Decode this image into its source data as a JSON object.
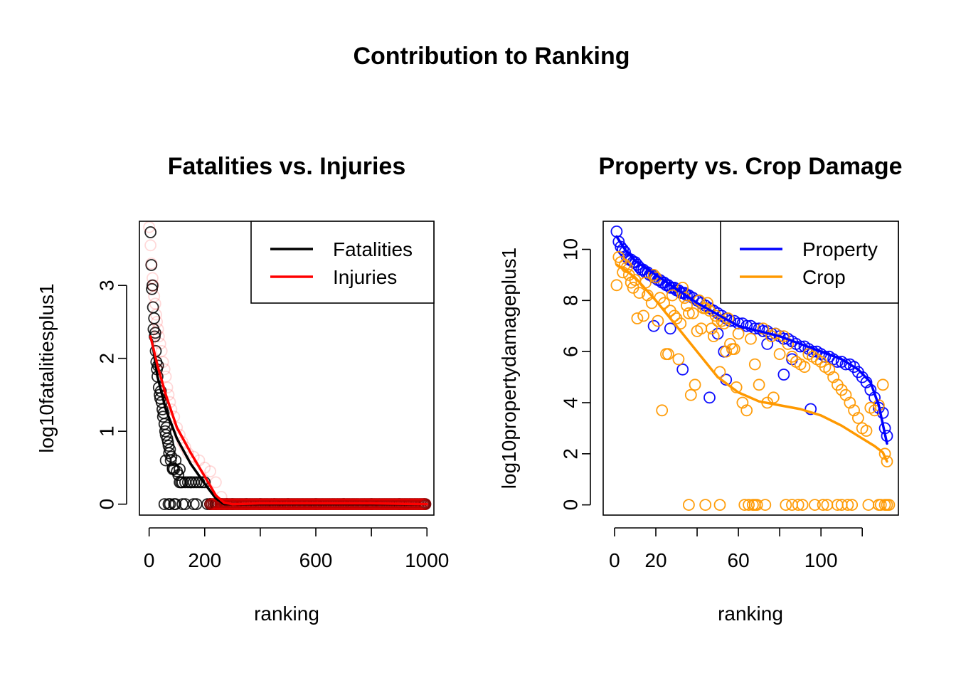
{
  "figure": {
    "title": "Contribution to Ranking"
  },
  "chart_data": [
    {
      "type": "scatter",
      "title": "Fatalities vs. Injuries",
      "xlabel": "ranking",
      "ylabel": "log10fatalitiesplus1",
      "xlim": [
        -35,
        1025
      ],
      "ylim": [
        -0.15,
        3.88
      ],
      "xticks": [
        0,
        200,
        400,
        600,
        800,
        1000
      ],
      "xtick_labels": [
        "0",
        "200",
        "",
        "600",
        "",
        "1000"
      ],
      "yticks": [
        0,
        1,
        2,
        3
      ],
      "ytick_labels": [
        "0",
        "1",
        "2",
        "3"
      ],
      "grid": false,
      "legend": {
        "position": "top-right",
        "entries": [
          "Fatalities",
          "Injuries"
        ]
      },
      "series": [
        {
          "name": "Fatalities",
          "color": "#000000",
          "points_x": [
            5,
            8,
            10,
            12,
            14,
            16,
            18,
            20,
            22,
            24,
            26,
            28,
            30,
            32,
            35,
            38,
            40,
            42,
            45,
            48,
            50,
            52,
            55,
            58,
            60,
            62,
            65,
            68,
            70,
            72,
            75,
            78,
            80,
            85,
            90,
            95,
            100,
            105,
            110,
            115,
            120,
            130,
            140,
            150,
            160,
            170,
            180,
            190,
            200,
            210,
            220,
            240,
            260,
            280,
            300,
            350,
            400,
            450,
            500,
            600,
            700,
            800,
            900,
            990,
            55,
            70,
            90,
            130,
            170,
            220,
            60,
            85,
            110,
            150,
            75,
            95,
            120,
            160
          ],
          "points_y": [
            3.73,
            3.28,
            2.95,
            3.0,
            2.7,
            2.4,
            2.55,
            2.3,
            2.35,
            2.1,
            1.95,
            1.85,
            1.75,
            1.9,
            1.6,
            1.5,
            1.45,
            1.55,
            1.4,
            1.3,
            1.2,
            1.25,
            1.1,
            1.0,
            0.95,
            1.05,
            0.9,
            0.85,
            0.8,
            0.7,
            0.75,
            0.6,
            0.65,
            0.5,
            0.48,
            0.6,
            0.45,
            0.4,
            0.48,
            0.3,
            0.3,
            0.3,
            0.3,
            0.3,
            0.3,
            0.3,
            0.3,
            0.3,
            0.3,
            0.0,
            0.0,
            0.0,
            0.0,
            0.0,
            0.0,
            0.0,
            0.0,
            0.0,
            0.0,
            0.0,
            0.0,
            0.0,
            0.0,
            0.0,
            0.0,
            0.0,
            0.0,
            0.0,
            0.0,
            0.0,
            0.6,
            0.48,
            0.3,
            0.3,
            0.0,
            0.0,
            0.0,
            0.0
          ],
          "fit_x": [
            10,
            30,
            60,
            100,
            150,
            200,
            240,
            270,
            300,
            400,
            600,
            800,
            1000
          ],
          "fit_y": [
            2.25,
            1.75,
            1.3,
            0.9,
            0.55,
            0.28,
            0.08,
            0.0,
            0.0,
            0.0,
            0.0,
            0.0,
            0.0
          ]
        },
        {
          "name": "Injuries",
          "color": "#ff0000",
          "points_x": [
            0,
            5,
            8,
            12,
            15,
            18,
            22,
            25,
            28,
            32,
            35,
            40,
            45,
            50,
            55,
            60,
            65,
            70,
            75,
            80,
            90,
            100,
            110,
            120,
            130,
            140,
            160,
            180,
            200,
            220,
            240,
            260,
            300,
            400,
            500,
            600,
            700,
            800,
            900,
            990
          ],
          "points_y": [
            3.8,
            3.55,
            3.3,
            3.1,
            3.0,
            2.85,
            2.75,
            2.6,
            2.5,
            2.4,
            2.3,
            2.2,
            2.1,
            1.95,
            1.85,
            1.75,
            1.6,
            1.5,
            1.4,
            1.3,
            1.2,
            1.05,
            0.95,
            0.85,
            0.78,
            0.7,
            0.65,
            0.6,
            0.5,
            0.45,
            0.3,
            0.1,
            0.0,
            0.0,
            0.0,
            0.0,
            0.0,
            0.0,
            0.0,
            0.0
          ],
          "fit_x": [
            5,
            30,
            60,
            100,
            150,
            200,
            240,
            270,
            300,
            400,
            600,
            800,
            1000
          ],
          "fit_y": [
            2.3,
            1.9,
            1.5,
            1.05,
            0.7,
            0.38,
            0.12,
            0.02,
            0.0,
            0.01,
            0.01,
            0.01,
            0.0
          ]
        }
      ]
    },
    {
      "type": "scatter",
      "title": "Property vs. Crop Damage",
      "xlabel": "ranking",
      "ylabel": "log10propertydamageplus1",
      "xlim": [
        -5.5,
        137.5
      ],
      "ylim": [
        -0.4,
        11.1
      ],
      "xticks": [
        0,
        20,
        40,
        60,
        80,
        100,
        120
      ],
      "xtick_labels": [
        "0",
        "20",
        "",
        "60",
        "",
        "100",
        ""
      ],
      "yticks": [
        0,
        2,
        4,
        6,
        8,
        10
      ],
      "ytick_labels": [
        "0",
        "2",
        "4",
        "6",
        "8",
        "10"
      ],
      "grid": false,
      "legend": {
        "position": "top-right",
        "entries": [
          "Property",
          "Crop"
        ]
      },
      "series": [
        {
          "name": "Property",
          "color": "#0000ff",
          "points_x": [
            1,
            2,
            3,
            4,
            5,
            6,
            7,
            8,
            9,
            10,
            11,
            12,
            13,
            14,
            15,
            16,
            17,
            18,
            19,
            20,
            21,
            22,
            23,
            24,
            25,
            26,
            27,
            28,
            29,
            30,
            31,
            32,
            33,
            34,
            35,
            36,
            38,
            40,
            42,
            44,
            46,
            48,
            50,
            52,
            54,
            56,
            58,
            60,
            62,
            64,
            66,
            68,
            70,
            72,
            74,
            76,
            78,
            80,
            82,
            84,
            86,
            88,
            90,
            92,
            94,
            96,
            98,
            100,
            102,
            104,
            106,
            108,
            110,
            112,
            114,
            116,
            118,
            120,
            122,
            124,
            126,
            128,
            130,
            131,
            132,
            19,
            27,
            33,
            46,
            50,
            53,
            54,
            82,
            95,
            74,
            86
          ],
          "points_y": [
            10.7,
            10.3,
            10.1,
            10.0,
            9.9,
            9.7,
            9.6,
            9.6,
            9.5,
            9.5,
            9.4,
            9.3,
            9.2,
            9.2,
            9.1,
            9.1,
            9.0,
            9.0,
            8.9,
            8.9,
            8.8,
            8.8,
            8.7,
            8.7,
            8.6,
            8.6,
            8.5,
            8.5,
            8.5,
            8.4,
            8.4,
            8.3,
            8.3,
            8.3,
            8.2,
            8.2,
            8.1,
            8.0,
            7.9,
            7.8,
            7.7,
            7.6,
            7.5,
            7.4,
            7.3,
            7.2,
            7.2,
            7.1,
            7.1,
            7.0,
            7.0,
            6.9,
            6.9,
            6.8,
            6.8,
            6.7,
            6.7,
            6.6,
            6.5,
            6.5,
            6.4,
            6.3,
            6.2,
            6.2,
            6.1,
            6.0,
            6.0,
            5.9,
            5.8,
            5.8,
            5.7,
            5.6,
            5.6,
            5.5,
            5.5,
            5.4,
            5.2,
            5.0,
            4.8,
            4.5,
            4.2,
            3.8,
            3.6,
            3.0,
            2.7,
            7.0,
            6.9,
            5.3,
            4.2,
            6.7,
            6.0,
            4.9,
            5.1,
            3.75,
            6.3,
            5.7
          ],
          "fit_x": [
            1,
            5,
            10,
            20,
            30,
            40,
            50,
            60,
            70,
            80,
            90,
            100,
            110,
            118,
            124,
            128,
            132
          ],
          "fit_y": [
            10.5,
            10.0,
            9.55,
            9.0,
            8.45,
            7.9,
            7.45,
            7.0,
            6.8,
            6.6,
            6.3,
            6.0,
            5.7,
            5.3,
            4.8,
            3.9,
            2.4
          ]
        },
        {
          "name": "Crop",
          "color": "#ff9900",
          "points_x": [
            1,
            2,
            3,
            4,
            5,
            6,
            7,
            8,
            9,
            10,
            11,
            12,
            14,
            15,
            16,
            18,
            19,
            20,
            21,
            22,
            23,
            24,
            25,
            26,
            27,
            28,
            29,
            30,
            31,
            32,
            33,
            34,
            35,
            36,
            37,
            38,
            39,
            40,
            41,
            42,
            43,
            44,
            45,
            46,
            47,
            48,
            49,
            50,
            51,
            52,
            53,
            54,
            55,
            56,
            57,
            58,
            59,
            60,
            62,
            64,
            66,
            68,
            70,
            72,
            74,
            76,
            77,
            78,
            80,
            82,
            84,
            86,
            88,
            90,
            92,
            94,
            96,
            98,
            100,
            102,
            104,
            106,
            108,
            110,
            112,
            114,
            116,
            118,
            120,
            122,
            124,
            126,
            128,
            130,
            131,
            132,
            36,
            44,
            51,
            63,
            65,
            67,
            68,
            69,
            73,
            83,
            86,
            89,
            91,
            97,
            101,
            103,
            108,
            110,
            113,
            115,
            123,
            128,
            129,
            131,
            132,
            133
          ],
          "points_y": [
            8.6,
            9.7,
            9.5,
            9.1,
            9.4,
            9.3,
            9.0,
            8.7,
            8.5,
            8.8,
            7.3,
            8.3,
            7.4,
            8.7,
            8.2,
            7.9,
            9.0,
            8.9,
            7.2,
            8.1,
            3.7,
            7.9,
            5.9,
            5.9,
            7.6,
            8.2,
            7.4,
            7.3,
            5.7,
            7.1,
            8.5,
            8.1,
            7.8,
            7.5,
            4.3,
            7.5,
            4.7,
            6.8,
            8.0,
            6.9,
            7.7,
            7.7,
            7.9,
            7.6,
            6.9,
            6.6,
            7.4,
            7.2,
            5.2,
            7.2,
            7.1,
            6.0,
            7.3,
            6.3,
            6.1,
            6.1,
            4.6,
            6.7,
            4.0,
            3.7,
            6.5,
            5.5,
            4.7,
            6.9,
            4.0,
            6.6,
            4.2,
            6.7,
            5.9,
            6.6,
            6.3,
            5.8,
            5.6,
            5.5,
            5.4,
            5.9,
            5.8,
            5.7,
            5.6,
            5.4,
            5.3,
            5.0,
            4.7,
            4.5,
            4.3,
            4.0,
            3.7,
            3.4,
            3.0,
            2.9,
            3.8,
            3.7,
            3.9,
            4.7,
            2.0,
            1.7,
            0.0,
            0.0,
            0.0,
            0.0,
            0.0,
            0.0,
            0.0,
            0.0,
            0.0,
            0.0,
            0.0,
            0.0,
            0.0,
            0.0,
            0.0,
            0.0,
            0.0,
            0.0,
            0.0,
            0.0,
            0.0,
            0.0,
            0.0,
            0.0,
            0.0,
            0.0
          ],
          "fit_x": [
            1,
            5,
            10,
            20,
            30,
            40,
            50,
            60,
            70,
            80,
            90,
            100,
            110,
            120,
            126,
            130,
            132
          ],
          "fit_y": [
            9.4,
            9.2,
            8.9,
            8.0,
            7.0,
            6.0,
            5.0,
            4.4,
            4.05,
            3.9,
            3.75,
            3.5,
            3.1,
            2.6,
            2.3,
            2.05,
            1.7
          ]
        }
      ]
    }
  ]
}
